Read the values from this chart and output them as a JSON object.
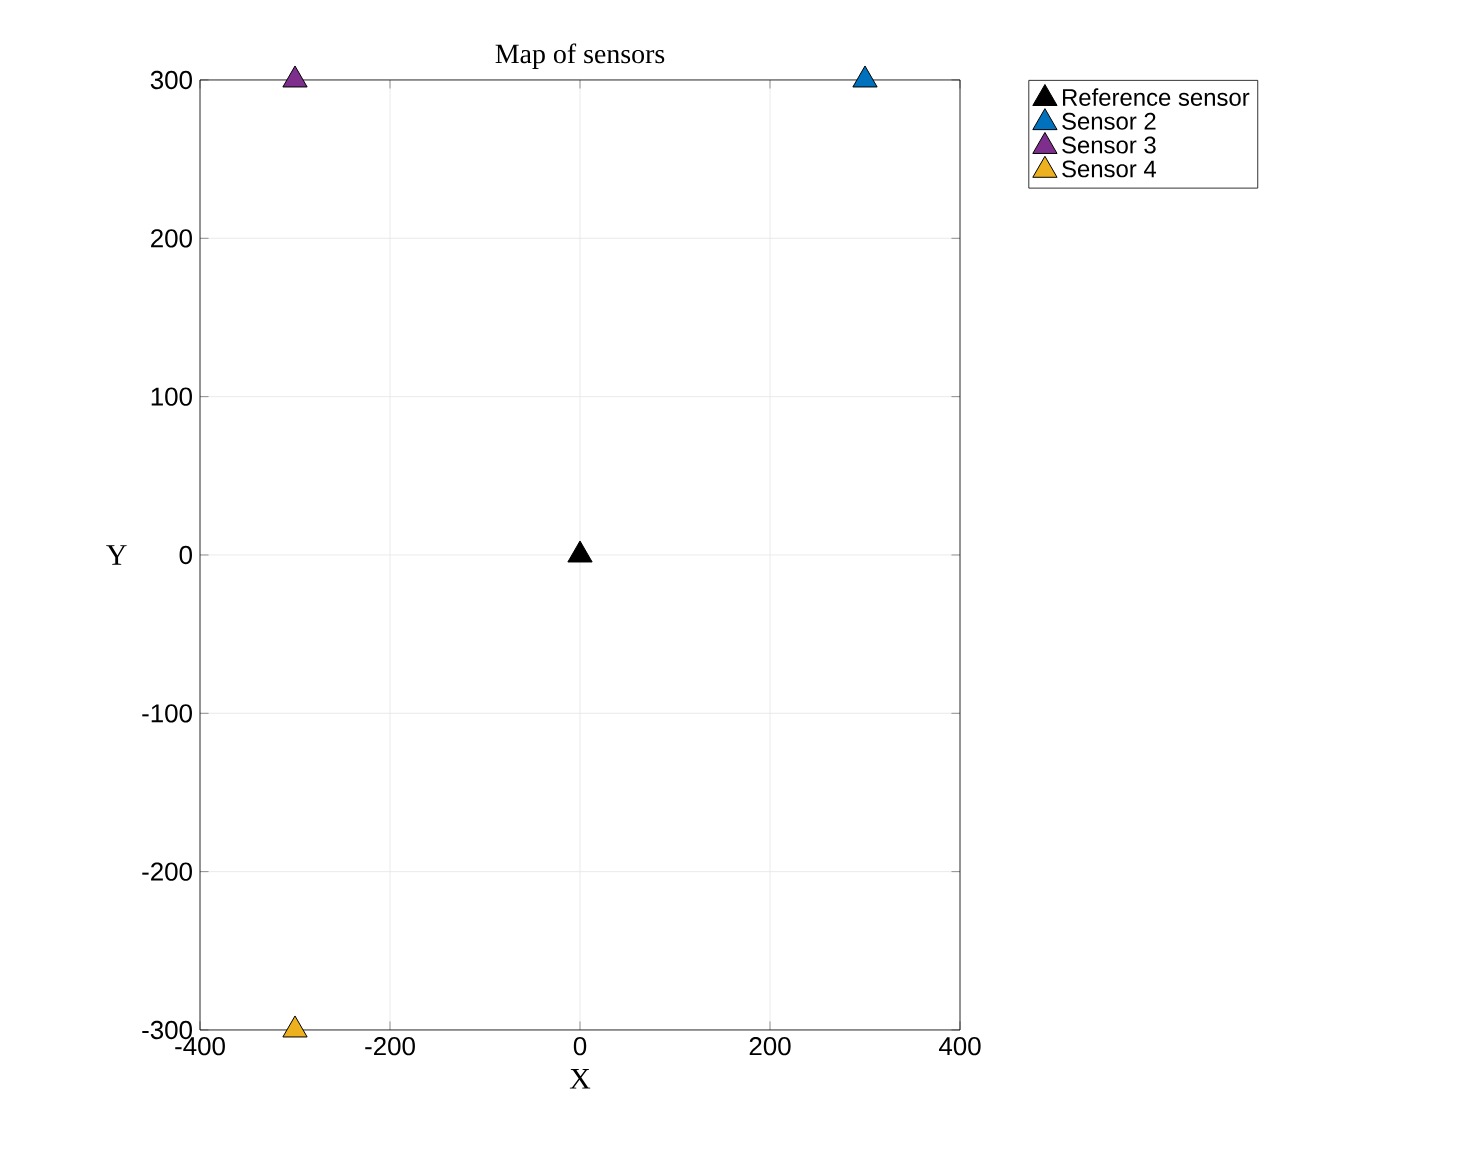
{
  "chart_data": {
    "type": "scatter",
    "title": "Map of sensors",
    "xlabel": "X",
    "ylabel": "Y",
    "xlim": [
      -400,
      400
    ],
    "ylim": [
      -300,
      300
    ],
    "xticks": [
      -400,
      -200,
      0,
      200,
      400
    ],
    "yticks": [
      -300,
      -200,
      -100,
      0,
      100,
      200,
      300
    ],
    "grid": true,
    "legend": "top right",
    "marker": "triangle",
    "series": [
      {
        "name": "Reference sensor",
        "color": "#000000",
        "x": [
          0
        ],
        "values": [
          0
        ]
      },
      {
        "name": "Sensor 2",
        "color": "#0072bd",
        "x": [
          300
        ],
        "values": [
          300
        ]
      },
      {
        "name": "Sensor 3",
        "color": "#7e2f8e",
        "x": [
          -300
        ],
        "values": [
          300
        ]
      },
      {
        "name": "Sensor 4",
        "color": "#edb120",
        "x": [
          -300
        ],
        "values": [
          -300
        ]
      }
    ]
  }
}
